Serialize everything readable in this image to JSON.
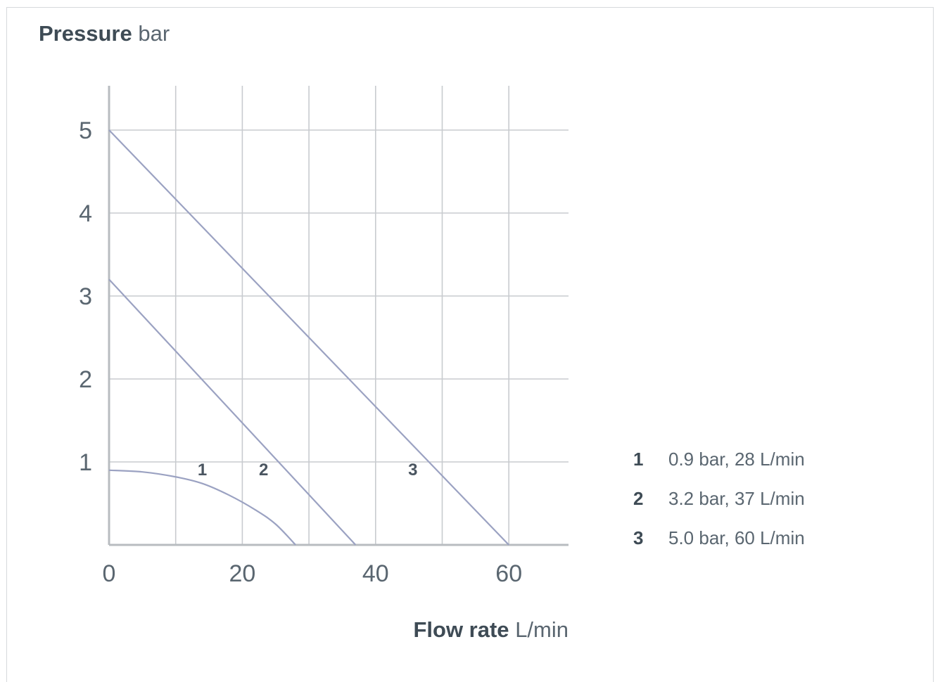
{
  "chart_data": {
    "type": "line",
    "y_axis_title": {
      "bold": "Pressure",
      "unit": "bar"
    },
    "x_axis_title": {
      "bold": "Flow rate",
      "unit": "L/min"
    },
    "xlim": [
      0,
      69
    ],
    "ylim": [
      0,
      5.5
    ],
    "x_ticks": [
      0,
      20,
      40,
      60
    ],
    "x_tick_labels": [
      "0",
      "20",
      "40",
      "60"
    ],
    "y_ticks": [
      1,
      2,
      3,
      4,
      5
    ],
    "y_tick_labels": [
      "1",
      "2",
      "3",
      "4",
      "5"
    ],
    "x_gridlines": [
      0,
      10,
      20,
      30,
      40,
      50,
      60
    ],
    "y_gridlines": [
      0,
      1,
      2,
      3,
      4,
      5
    ],
    "grid": true,
    "line_color": "#9ba2c2",
    "grid_color": "#c8cbcf",
    "axis_color": "#b8bcc0",
    "series": [
      {
        "name": "1",
        "label_x": 14,
        "label_y": 0.84,
        "points": [
          [
            0,
            0.9
          ],
          [
            5,
            0.88
          ],
          [
            10,
            0.82
          ],
          [
            14,
            0.74
          ],
          [
            18,
            0.6
          ],
          [
            22,
            0.42
          ],
          [
            25,
            0.25
          ],
          [
            28,
            0
          ]
        ]
      },
      {
        "name": "2",
        "label_x": 23.2,
        "label_y": 0.84,
        "points": [
          [
            0,
            3.2
          ],
          [
            37,
            0
          ]
        ]
      },
      {
        "name": "3",
        "label_x": 45.6,
        "label_y": 0.84,
        "points": [
          [
            0,
            5.0
          ],
          [
            60,
            0
          ]
        ]
      }
    ],
    "legend": {
      "position": "right",
      "entries": [
        {
          "num": "1",
          "text": "0.9 bar, 28 L/min"
        },
        {
          "num": "2",
          "text": "3.2 bar, 37 L/min"
        },
        {
          "num": "3",
          "text": "5.0 bar, 60 L/min"
        }
      ]
    }
  }
}
